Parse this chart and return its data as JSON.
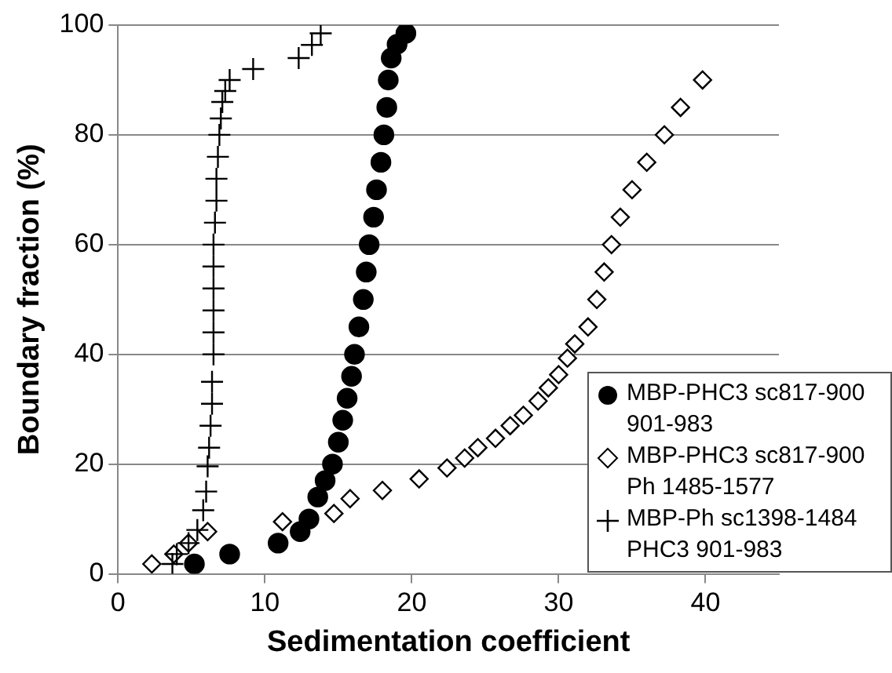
{
  "chart_data": {
    "type": "scatter",
    "xlabel": "Sedimentation coefficient",
    "ylabel": "Boundary fraction (%)",
    "xlim": [
      0,
      45
    ],
    "xticks": [
      0,
      10,
      20,
      30,
      40
    ],
    "ylim": [
      0,
      100
    ],
    "yticks": [
      0,
      20,
      40,
      60,
      80,
      100
    ],
    "grid": "y",
    "legend": "bottom right",
    "series": [
      {
        "name": "MBP-PHC3 sc817-900 901-983",
        "color": "#000000",
        "marker": "circle",
        "x": [
          5.2,
          7.6,
          10.9,
          12.4,
          13.0,
          13.6,
          14.1,
          14.6,
          15.0,
          15.3,
          15.6,
          15.9,
          16.1,
          16.4,
          16.7,
          16.9,
          17.1,
          17.4,
          17.6,
          17.9,
          18.1,
          18.3,
          18.4,
          18.6,
          19.0,
          19.6
        ],
        "values": [
          1.8,
          3.6,
          5.6,
          7.7,
          10,
          14,
          17,
          20,
          24,
          28,
          32,
          36,
          40,
          45,
          50,
          55,
          60,
          65,
          70,
          75,
          80,
          85,
          90,
          94,
          96.5,
          98.5
        ]
      },
      {
        "name": "MBP-PHC3 sc817-900 Ph 1485-1577",
        "color": "#000000",
        "marker": "diamond",
        "x": [
          2.3,
          3.8,
          4.8,
          6.1,
          11.2,
          14.7,
          15.8,
          18.0,
          20.5,
          22.4,
          23.6,
          24.5,
          25.7,
          26.7,
          27.6,
          28.6,
          29.3,
          30.0,
          30.6,
          31.1,
          32.0,
          32.6,
          33.1,
          33.6,
          34.2,
          35.0,
          36.0,
          37.2,
          38.3,
          39.8
        ],
        "values": [
          1.8,
          3.6,
          5.6,
          7.7,
          9.5,
          11,
          13.7,
          15.2,
          17.3,
          19.3,
          21.1,
          23,
          24.7,
          27,
          28.9,
          31.5,
          33.9,
          36.3,
          39.3,
          41.9,
          45,
          50,
          55,
          60,
          65,
          70,
          75,
          80,
          85,
          90
        ]
      },
      {
        "name": "MBP-Ph sc1398-1484 PHC3 901-983",
        "color": "#000000",
        "marker": "cross",
        "x": [
          3.7,
          4.0,
          4.8,
          5.4,
          5.8,
          6.0,
          6.1,
          6.2,
          6.3,
          6.4,
          6.4,
          6.5,
          6.5,
          6.5,
          6.5,
          6.5,
          6.5,
          6.6,
          6.7,
          6.7,
          6.8,
          6.9,
          7.0,
          7.1,
          7.3,
          7.6,
          9.2,
          12.3,
          13.2,
          13.8
        ],
        "values": [
          1.8,
          3.6,
          5.6,
          8,
          11.6,
          15,
          19.6,
          23,
          27,
          31,
          35,
          40,
          44,
          48,
          52,
          56,
          60,
          64,
          68,
          72,
          76,
          80,
          83,
          86,
          88,
          90,
          92,
          94,
          96.4,
          98.5
        ]
      }
    ]
  }
}
